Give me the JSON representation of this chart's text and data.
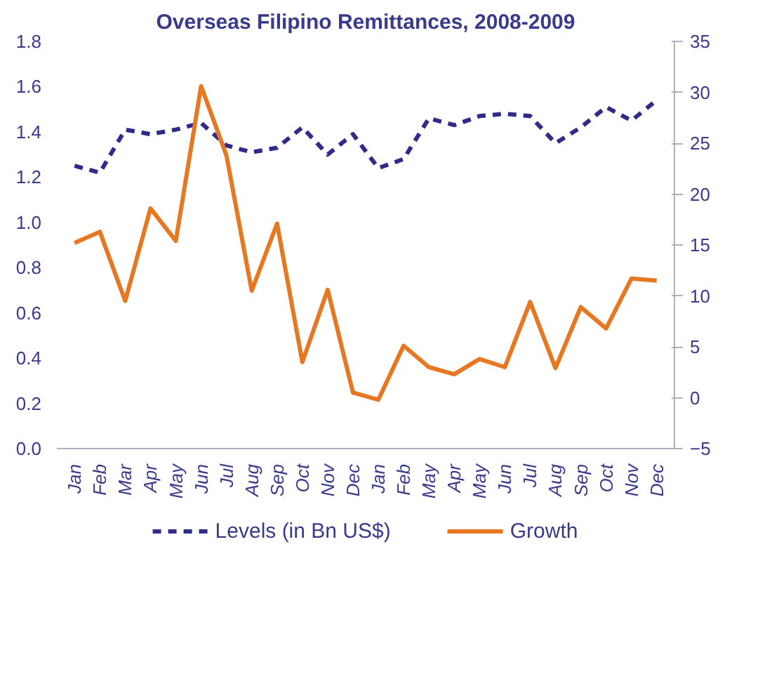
{
  "chart_data": {
    "type": "line",
    "title": "Overseas Filipino Remittances, 2008-2009",
    "categories": [
      "Jan",
      "Feb",
      "Mar",
      "Apr",
      "May",
      "Jun",
      "Jul",
      "Aug",
      "Sep",
      "Oct",
      "Nov",
      "Dec",
      "Jan",
      "Feb",
      "May",
      "Apr",
      "May",
      "Jun",
      "Jul",
      "Aug",
      "Sep",
      "Oct",
      "Nov",
      "Dec"
    ],
    "series": [
      {
        "name": "Levels (in Bn US$)",
        "color": "#2e2b8a",
        "line_style": "dashed",
        "values": [
          1.25,
          1.22,
          1.41,
          1.39,
          1.41,
          1.44,
          1.34,
          1.31,
          1.33,
          1.42,
          1.3,
          1.39,
          1.24,
          1.28,
          1.46,
          1.43,
          1.47,
          1.48,
          1.47,
          1.35,
          1.42,
          1.51,
          1.45,
          1.54
        ]
      },
      {
        "name": "Growth",
        "color": "#e87722",
        "line_style": "solid",
        "axis": "y2",
        "values": [
          15.2,
          16.3,
          9.5,
          18.6,
          15.4,
          30.6,
          23.8,
          10.5,
          17.1,
          3.5,
          10.6,
          0.5,
          -0.2,
          5.1,
          3.0,
          2.3,
          3.8,
          3.0,
          9.4,
          2.9,
          8.9,
          6.8,
          11.7,
          11.5
        ]
      }
    ],
    "ylim": [
      0,
      1.8
    ],
    "yticks": [
      {
        "value": 0,
        "label": "0.0"
      },
      0.2,
      0.4,
      0.6,
      0.8,
      {
        "value": 1,
        "label": "1.0"
      },
      1.2,
      1.4,
      1.6,
      1.8
    ],
    "y2lim": [
      -5,
      35
    ],
    "y2ticks": [
      -5,
      0,
      5,
      10,
      15,
      20,
      25,
      30,
      35
    ],
    "grid": false,
    "legend": "bottom",
    "marker": "none"
  }
}
